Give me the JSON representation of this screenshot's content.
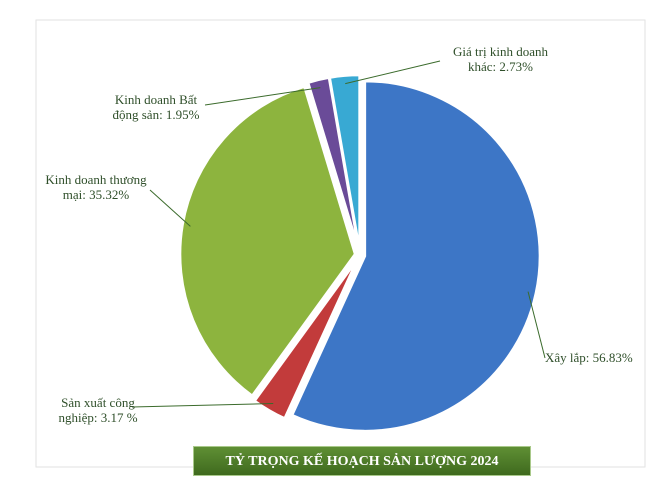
{
  "chart_data": {
    "type": "pie",
    "title": "TỶ TRỌNG KẾ HOẠCH SẢN LƯỢNG 2024",
    "values": [
      56.83,
      3.17,
      35.32,
      1.95,
      2.73
    ],
    "value_labels": [
      "Xây lắp: 56.83%",
      "Sản xuất công nghiệp: 3.17 %",
      "Kinh doanh thương mại: 35.32%",
      "Kinh doanh Bất động sản: 1.95%",
      "Giá trị kinh doanh khác: 2.73%"
    ],
    "colors": [
      "#3d76c6",
      "#c23b3b",
      "#8db43e",
      "#6a4b98",
      "#38a9d3"
    ]
  }
}
